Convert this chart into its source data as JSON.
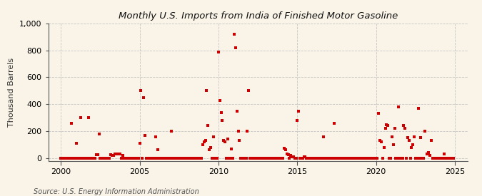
{
  "title": "Monthly U.S. Imports from India of Finished Motor Gasoline",
  "ylabel": "Thousand Barrels",
  "source": "Source: U.S. Energy Information Administration",
  "background_color": "#faf4e8",
  "plot_bg_color": "#faf4e8",
  "grid_color": "#bbbbbb",
  "marker_color": "#cc0000",
  "xlim": [
    1999.2,
    2025.8
  ],
  "ylim": [
    -20,
    1000
  ],
  "yticks": [
    0,
    200,
    400,
    600,
    800,
    1000
  ],
  "xticks": [
    2000,
    2005,
    2010,
    2015,
    2020,
    2025
  ],
  "data": [
    [
      2000.67,
      260
    ],
    [
      2001.0,
      110
    ],
    [
      2001.25,
      300
    ],
    [
      2001.75,
      300
    ],
    [
      2002.25,
      25
    ],
    [
      2002.33,
      25
    ],
    [
      2002.42,
      180
    ],
    [
      2003.17,
      25
    ],
    [
      2003.25,
      20
    ],
    [
      2003.33,
      20
    ],
    [
      2003.42,
      30
    ],
    [
      2003.5,
      30
    ],
    [
      2003.58,
      30
    ],
    [
      2003.67,
      30
    ],
    [
      2003.75,
      30
    ],
    [
      2003.92,
      20
    ],
    [
      2005.0,
      110
    ],
    [
      2005.08,
      500
    ],
    [
      2005.25,
      450
    ],
    [
      2005.33,
      170
    ],
    [
      2006.0,
      160
    ],
    [
      2006.17,
      60
    ],
    [
      2007.0,
      200
    ],
    [
      2009.0,
      100
    ],
    [
      2009.08,
      120
    ],
    [
      2009.17,
      130
    ],
    [
      2009.25,
      500
    ],
    [
      2009.33,
      240
    ],
    [
      2009.42,
      60
    ],
    [
      2009.5,
      80
    ],
    [
      2009.67,
      160
    ],
    [
      2010.0,
      790
    ],
    [
      2010.08,
      430
    ],
    [
      2010.17,
      340
    ],
    [
      2010.25,
      280
    ],
    [
      2010.33,
      130
    ],
    [
      2010.42,
      120
    ],
    [
      2010.58,
      140
    ],
    [
      2010.83,
      70
    ],
    [
      2011.0,
      920
    ],
    [
      2011.08,
      820
    ],
    [
      2011.17,
      350
    ],
    [
      2011.25,
      200
    ],
    [
      2011.33,
      130
    ],
    [
      2011.83,
      200
    ],
    [
      2011.92,
      500
    ],
    [
      2014.17,
      75
    ],
    [
      2014.25,
      60
    ],
    [
      2014.33,
      30
    ],
    [
      2014.42,
      25
    ],
    [
      2014.58,
      20
    ],
    [
      2014.67,
      10
    ],
    [
      2014.75,
      10
    ],
    [
      2015.0,
      280
    ],
    [
      2015.08,
      350
    ],
    [
      2015.42,
      10
    ],
    [
      2015.5,
      10
    ],
    [
      2016.67,
      160
    ],
    [
      2017.33,
      260
    ],
    [
      2020.17,
      330
    ],
    [
      2020.25,
      130
    ],
    [
      2020.33,
      120
    ],
    [
      2020.5,
      80
    ],
    [
      2020.58,
      220
    ],
    [
      2020.67,
      250
    ],
    [
      2020.75,
      240
    ],
    [
      2021.0,
      160
    ],
    [
      2021.08,
      100
    ],
    [
      2021.17,
      220
    ],
    [
      2021.42,
      380
    ],
    [
      2021.75,
      240
    ],
    [
      2021.83,
      220
    ],
    [
      2022.0,
      150
    ],
    [
      2022.08,
      130
    ],
    [
      2022.25,
      80
    ],
    [
      2022.33,
      100
    ],
    [
      2022.42,
      160
    ],
    [
      2022.67,
      370
    ],
    [
      2022.83,
      150
    ],
    [
      2023.08,
      200
    ],
    [
      2023.25,
      30
    ],
    [
      2023.33,
      40
    ],
    [
      2023.42,
      20
    ],
    [
      2023.5,
      130
    ],
    [
      2024.33,
      30
    ]
  ],
  "zero_data": [
    [
      2000.0,
      0
    ],
    [
      2000.08,
      0
    ],
    [
      2000.17,
      0
    ],
    [
      2000.25,
      0
    ],
    [
      2000.33,
      0
    ],
    [
      2000.42,
      0
    ],
    [
      2000.5,
      0
    ],
    [
      2000.58,
      0
    ],
    [
      2000.75,
      0
    ],
    [
      2000.83,
      0
    ],
    [
      2000.92,
      0
    ],
    [
      2001.08,
      0
    ],
    [
      2001.17,
      0
    ],
    [
      2001.33,
      0
    ],
    [
      2001.42,
      0
    ],
    [
      2001.5,
      0
    ],
    [
      2001.58,
      0
    ],
    [
      2001.67,
      0
    ],
    [
      2001.83,
      0
    ],
    [
      2001.92,
      0
    ],
    [
      2002.0,
      0
    ],
    [
      2002.08,
      0
    ],
    [
      2002.17,
      0
    ],
    [
      2002.5,
      0
    ],
    [
      2002.58,
      0
    ],
    [
      2002.67,
      0
    ],
    [
      2002.75,
      0
    ],
    [
      2002.83,
      0
    ],
    [
      2002.92,
      0
    ],
    [
      2003.0,
      0
    ],
    [
      2003.08,
      0
    ],
    [
      2003.83,
      0
    ],
    [
      2004.0,
      0
    ],
    [
      2004.08,
      0
    ],
    [
      2004.17,
      0
    ],
    [
      2004.25,
      0
    ],
    [
      2004.33,
      0
    ],
    [
      2004.42,
      0
    ],
    [
      2004.5,
      0
    ],
    [
      2004.58,
      0
    ],
    [
      2004.67,
      0
    ],
    [
      2004.75,
      0
    ],
    [
      2004.83,
      0
    ],
    [
      2004.92,
      0
    ],
    [
      2005.17,
      0
    ],
    [
      2005.42,
      0
    ],
    [
      2005.5,
      0
    ],
    [
      2005.58,
      0
    ],
    [
      2005.67,
      0
    ],
    [
      2005.75,
      0
    ],
    [
      2005.83,
      0
    ],
    [
      2005.92,
      0
    ],
    [
      2006.08,
      0
    ],
    [
      2006.25,
      0
    ],
    [
      2006.33,
      0
    ],
    [
      2006.42,
      0
    ],
    [
      2006.5,
      0
    ],
    [
      2006.58,
      0
    ],
    [
      2006.67,
      0
    ],
    [
      2006.75,
      0
    ],
    [
      2006.83,
      0
    ],
    [
      2006.92,
      0
    ],
    [
      2007.08,
      0
    ],
    [
      2007.17,
      0
    ],
    [
      2007.25,
      0
    ],
    [
      2007.33,
      0
    ],
    [
      2007.42,
      0
    ],
    [
      2007.5,
      0
    ],
    [
      2007.58,
      0
    ],
    [
      2007.67,
      0
    ],
    [
      2007.75,
      0
    ],
    [
      2007.83,
      0
    ],
    [
      2007.92,
      0
    ],
    [
      2008.0,
      0
    ],
    [
      2008.08,
      0
    ],
    [
      2008.17,
      0
    ],
    [
      2008.25,
      0
    ],
    [
      2008.33,
      0
    ],
    [
      2008.42,
      0
    ],
    [
      2008.5,
      0
    ],
    [
      2008.58,
      0
    ],
    [
      2008.67,
      0
    ],
    [
      2008.75,
      0
    ],
    [
      2008.83,
      0
    ],
    [
      2008.92,
      0
    ],
    [
      2009.58,
      0
    ],
    [
      2009.75,
      0
    ],
    [
      2009.83,
      0
    ],
    [
      2009.92,
      0
    ],
    [
      2010.5,
      0
    ],
    [
      2010.67,
      0
    ],
    [
      2010.75,
      0
    ],
    [
      2010.92,
      0
    ],
    [
      2011.42,
      0
    ],
    [
      2011.5,
      0
    ],
    [
      2011.58,
      0
    ],
    [
      2011.67,
      0
    ],
    [
      2011.75,
      0
    ],
    [
      2012.0,
      0
    ],
    [
      2012.08,
      0
    ],
    [
      2012.17,
      0
    ],
    [
      2012.25,
      0
    ],
    [
      2012.33,
      0
    ],
    [
      2012.42,
      0
    ],
    [
      2012.5,
      0
    ],
    [
      2012.58,
      0
    ],
    [
      2012.67,
      0
    ],
    [
      2012.75,
      0
    ],
    [
      2012.83,
      0
    ],
    [
      2012.92,
      0
    ],
    [
      2013.0,
      0
    ],
    [
      2013.08,
      0
    ],
    [
      2013.17,
      0
    ],
    [
      2013.25,
      0
    ],
    [
      2013.33,
      0
    ],
    [
      2013.42,
      0
    ],
    [
      2013.5,
      0
    ],
    [
      2013.58,
      0
    ],
    [
      2013.67,
      0
    ],
    [
      2013.75,
      0
    ],
    [
      2013.83,
      0
    ],
    [
      2013.92,
      0
    ],
    [
      2014.0,
      0
    ],
    [
      2014.08,
      0
    ],
    [
      2014.5,
      0
    ],
    [
      2014.83,
      0
    ],
    [
      2014.92,
      0
    ],
    [
      2015.17,
      0
    ],
    [
      2015.25,
      0
    ],
    [
      2015.33,
      0
    ],
    [
      2015.58,
      0
    ],
    [
      2015.67,
      0
    ],
    [
      2015.75,
      0
    ],
    [
      2015.83,
      0
    ],
    [
      2015.92,
      0
    ],
    [
      2016.0,
      0
    ],
    [
      2016.08,
      0
    ],
    [
      2016.17,
      0
    ],
    [
      2016.25,
      0
    ],
    [
      2016.33,
      0
    ],
    [
      2016.42,
      0
    ],
    [
      2016.5,
      0
    ],
    [
      2016.58,
      0
    ],
    [
      2016.75,
      0
    ],
    [
      2016.83,
      0
    ],
    [
      2016.92,
      0
    ],
    [
      2017.0,
      0
    ],
    [
      2017.08,
      0
    ],
    [
      2017.17,
      0
    ],
    [
      2017.25,
      0
    ],
    [
      2017.42,
      0
    ],
    [
      2017.5,
      0
    ],
    [
      2017.58,
      0
    ],
    [
      2017.67,
      0
    ],
    [
      2017.75,
      0
    ],
    [
      2017.83,
      0
    ],
    [
      2017.92,
      0
    ],
    [
      2018.0,
      0
    ],
    [
      2018.08,
      0
    ],
    [
      2018.17,
      0
    ],
    [
      2018.25,
      0
    ],
    [
      2018.33,
      0
    ],
    [
      2018.42,
      0
    ],
    [
      2018.5,
      0
    ],
    [
      2018.58,
      0
    ],
    [
      2018.67,
      0
    ],
    [
      2018.75,
      0
    ],
    [
      2018.83,
      0
    ],
    [
      2018.92,
      0
    ],
    [
      2019.0,
      0
    ],
    [
      2019.08,
      0
    ],
    [
      2019.17,
      0
    ],
    [
      2019.25,
      0
    ],
    [
      2019.33,
      0
    ],
    [
      2019.42,
      0
    ],
    [
      2019.5,
      0
    ],
    [
      2019.58,
      0
    ],
    [
      2019.67,
      0
    ],
    [
      2019.75,
      0
    ],
    [
      2019.83,
      0
    ],
    [
      2019.92,
      0
    ],
    [
      2020.0,
      0
    ],
    [
      2020.08,
      0
    ],
    [
      2020.42,
      0
    ],
    [
      2020.83,
      0
    ],
    [
      2020.92,
      0
    ],
    [
      2021.25,
      0
    ],
    [
      2021.33,
      0
    ],
    [
      2021.5,
      0
    ],
    [
      2021.58,
      0
    ],
    [
      2021.67,
      0
    ],
    [
      2021.92,
      0
    ],
    [
      2022.17,
      0
    ],
    [
      2022.5,
      0
    ],
    [
      2022.58,
      0
    ],
    [
      2022.75,
      0
    ],
    [
      2022.92,
      0
    ],
    [
      2023.0,
      0
    ],
    [
      2023.58,
      0
    ],
    [
      2023.67,
      0
    ],
    [
      2023.75,
      0
    ],
    [
      2023.83,
      0
    ],
    [
      2023.92,
      0
    ],
    [
      2024.0,
      0
    ],
    [
      2024.08,
      0
    ],
    [
      2024.17,
      0
    ],
    [
      2024.25,
      0
    ],
    [
      2024.42,
      0
    ],
    [
      2024.5,
      0
    ],
    [
      2024.58,
      0
    ],
    [
      2024.67,
      0
    ],
    [
      2024.75,
      0
    ],
    [
      2024.83,
      0
    ],
    [
      2024.92,
      0
    ]
  ]
}
